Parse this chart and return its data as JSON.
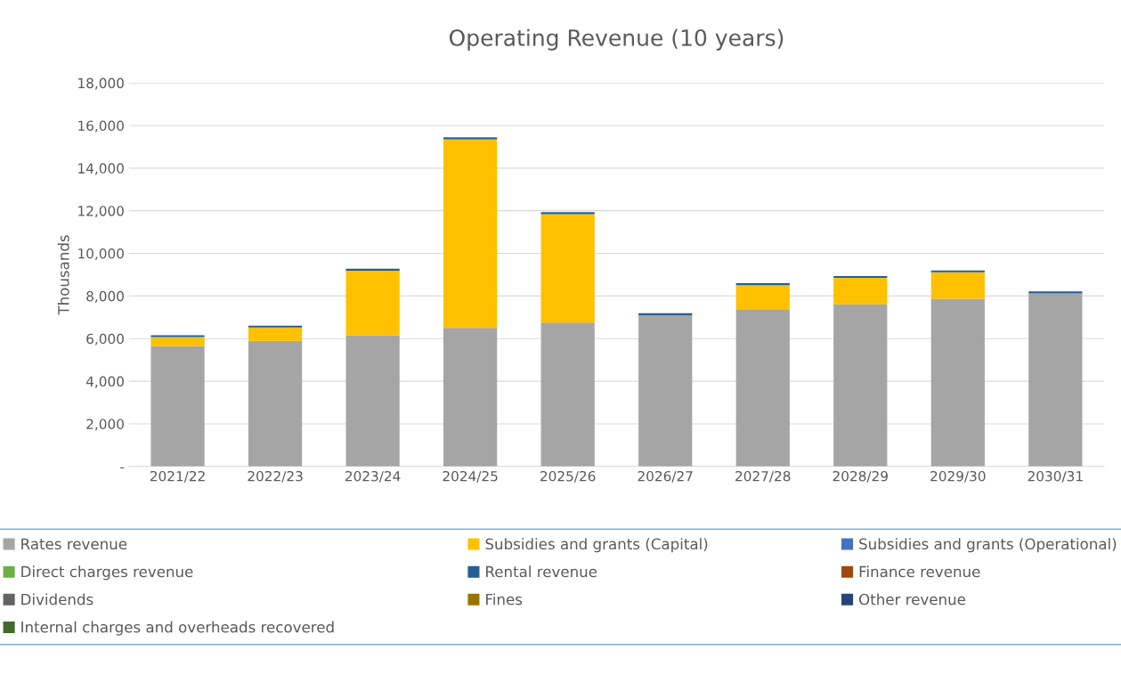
{
  "chart_data": {
    "type": "bar",
    "stacked": true,
    "title": "Operating Revenue (10 years)",
    "ylabel": "Thousands",
    "categories": [
      "2021/22",
      "2022/23",
      "2023/24",
      "2024/25",
      "2025/26",
      "2026/27",
      "2027/28",
      "2028/29",
      "2029/30",
      "2030/31"
    ],
    "series": [
      {
        "name": "Rates revenue",
        "color": "#a5a5a5",
        "values": [
          5640,
          5900,
          6160,
          6500,
          6750,
          7100,
          7350,
          7610,
          7870,
          8120
        ]
      },
      {
        "name": "Subsidies and grants (Capital)",
        "color": "#ffc000",
        "values": [
          430,
          620,
          3030,
          8850,
          5090,
          0,
          1160,
          1240,
          1240,
          0
        ]
      },
      {
        "name": "Subsidies and grants (Operational)",
        "color": "#4472c4",
        "values": [
          0,
          0,
          0,
          0,
          0,
          0,
          0,
          0,
          0,
          0
        ]
      },
      {
        "name": "Direct charges revenue",
        "color": "#70ad47",
        "values": [
          0,
          0,
          0,
          0,
          0,
          0,
          0,
          0,
          0,
          0
        ]
      },
      {
        "name": "Rental revenue",
        "color": "#255e91",
        "values": [
          90,
          90,
          90,
          90,
          90,
          90,
          90,
          90,
          90,
          90
        ]
      },
      {
        "name": "Finance revenue",
        "color": "#9e480e",
        "values": [
          0,
          0,
          0,
          0,
          0,
          0,
          0,
          0,
          0,
          0
        ]
      },
      {
        "name": "Dividends",
        "color": "#636363",
        "values": [
          0,
          0,
          0,
          0,
          0,
          0,
          0,
          0,
          0,
          0
        ]
      },
      {
        "name": "Fines",
        "color": "#997300",
        "values": [
          0,
          0,
          0,
          0,
          0,
          0,
          0,
          0,
          0,
          0
        ]
      },
      {
        "name": "Other revenue",
        "color": "#264478",
        "values": [
          0,
          0,
          0,
          0,
          0,
          0,
          0,
          0,
          0,
          0
        ]
      },
      {
        "name": "Internal charges and overheads recovered",
        "color": "#43682b",
        "values": [
          0,
          0,
          0,
          0,
          0,
          0,
          0,
          0,
          0,
          0
        ]
      }
    ],
    "ylim": [
      0,
      18000
    ],
    "yticks": [
      {
        "value": 0,
        "label": "-"
      },
      {
        "value": 2000,
        "label": "2,000"
      },
      {
        "value": 4000,
        "label": "4,000"
      },
      {
        "value": 6000,
        "label": "6,000"
      },
      {
        "value": 8000,
        "label": "8,000"
      },
      {
        "value": 10000,
        "label": "10,000"
      },
      {
        "value": 12000,
        "label": "12,000"
      },
      {
        "value": 14000,
        "label": "14,000"
      },
      {
        "value": 16000,
        "label": "16,000"
      },
      {
        "value": 18000,
        "label": "18,000"
      }
    ],
    "grid": "y",
    "legend": "bottom"
  }
}
